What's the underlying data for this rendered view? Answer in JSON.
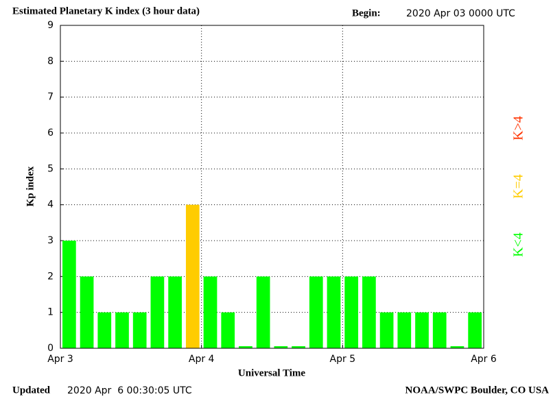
{
  "chart_data": {
    "type": "bar",
    "title": "Estimated Planetary K index (3 hour data)",
    "begin_label": "Begin:",
    "begin": "2020 Apr 03 0000 UTC",
    "xlabel": "Universal Time",
    "ylabel": "Kp index",
    "updated_label": "Updated",
    "updated": "2020 Apr  6 00:30:05 UTC",
    "credit": "NOAA/SWPC Boulder, CO USA",
    "x": [
      0,
      0.125,
      0.25,
      0.375,
      0.5,
      0.625,
      0.75,
      0.875,
      1,
      1.125,
      1.25,
      1.375,
      1.5,
      1.625,
      1.75,
      1.875,
      2,
      2.125,
      2.25,
      2.375,
      2.5,
      2.625,
      2.75,
      2.875
    ],
    "bar_width": 0.125,
    "values": [
      3,
      2,
      1,
      1,
      1,
      2,
      2,
      4,
      2,
      1,
      0,
      2,
      0,
      0,
      2,
      2,
      2,
      2,
      1,
      1,
      1,
      1,
      0,
      1
    ],
    "colors": [
      "#00ff00",
      "#00ff00",
      "#00ff00",
      "#00ff00",
      "#00ff00",
      "#00ff00",
      "#00ff00",
      "#ffcc00",
      "#00ff00",
      "#00ff00",
      "#00ff00",
      "#00ff00",
      "#00ff00",
      "#00ff00",
      "#00ff00",
      "#00ff00",
      "#00ff00",
      "#00ff00",
      "#00ff00",
      "#00ff00",
      "#00ff00",
      "#00ff00",
      "#00ff00",
      "#00ff00"
    ],
    "xlim": [
      0,
      3
    ],
    "xticks": [
      {
        "value": 0,
        "label": "Apr 3"
      },
      {
        "value": 1,
        "label": "Apr 4"
      },
      {
        "value": 2,
        "label": "Apr 5"
      },
      {
        "value": 3,
        "label": "Apr 6"
      }
    ],
    "ylim": [
      0,
      9
    ],
    "yticks": [
      0,
      1,
      2,
      3,
      4,
      5,
      6,
      7,
      8,
      9
    ],
    "grid": true,
    "legend": [
      {
        "name": "K>4",
        "color": "#ff3300"
      },
      {
        "name": "K=4",
        "color": "#ffcc00"
      },
      {
        "name": "K<4",
        "color": "#00ff00"
      }
    ]
  }
}
